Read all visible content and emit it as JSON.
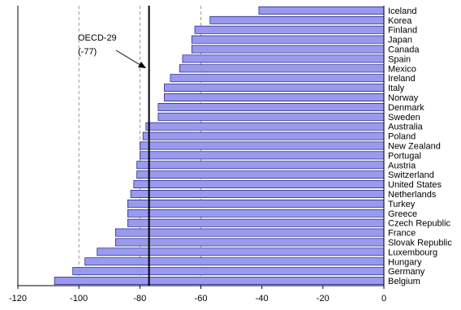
{
  "chart_data": {
    "type": "bar",
    "orientation": "horizontal",
    "categories": [
      "Iceland",
      "Korea",
      "Finland",
      "Japan",
      "Canada",
      "Spain",
      "Mexico",
      "Ireland",
      "Italy",
      "Norway",
      "Denmark",
      "Sweden",
      "Australia",
      "Poland",
      "New Zealand",
      "Portugal",
      "Austria",
      "Switzerland",
      "United States",
      "Netherlands",
      "Turkey",
      "Greece",
      "Czech Republic",
      "France",
      "Slovak Republic",
      "Luxembourg",
      "Hungary",
      "Germany",
      "Belgium"
    ],
    "values": [
      -41,
      -57,
      -62,
      -63,
      -63,
      -66,
      -67,
      -70,
      -72,
      -72,
      -74,
      -74,
      -78,
      -79,
      -80,
      -80,
      -81,
      -81,
      -82,
      -83,
      -84,
      -84,
      -84,
      -88,
      -88,
      -94,
      -98,
      -102,
      -108
    ],
    "xlim": [
      -120,
      0
    ],
    "xticks": [
      -120,
      -100,
      -80,
      -60,
      -40,
      -20,
      0
    ],
    "gridlines_at": [
      -100,
      -80,
      -60
    ],
    "grid": "vertical dashed",
    "colors": {
      "bar_fill": "#9999ee",
      "bar_edge": "#000066"
    },
    "reference_line": {
      "value": -77,
      "label_line1": "OECD-29",
      "label_line2": "(-77)"
    },
    "title": "",
    "xlabel": "",
    "ylabel": ""
  }
}
